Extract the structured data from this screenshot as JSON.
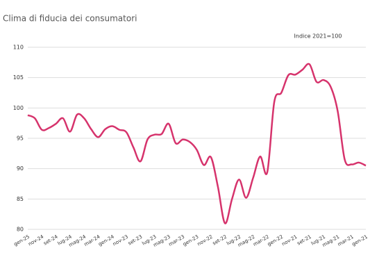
{
  "chart_data": {
    "type": "line",
    "title": "Clima di fiducia dei consumatori",
    "annotation": "Indice 2021=100",
    "categories": [
      "gen-25",
      null,
      "nov-24",
      null,
      "set-24",
      null,
      "lug-24",
      null,
      "mag-24",
      null,
      "mar-24",
      null,
      "gen-24",
      null,
      "nov-23",
      null,
      "set-23",
      null,
      "lug-23",
      null,
      "mag-23",
      null,
      "mar-23",
      null,
      "gen-23",
      null,
      "nov-22",
      null,
      "set-22",
      null,
      "lug-22",
      null,
      "mag-22",
      null,
      "mar-22",
      null,
      "gen-22",
      null,
      "nov-21",
      null,
      "set-21",
      null,
      "lug-21",
      null,
      "mag-21",
      null,
      "mar-21",
      null,
      "gen-21"
    ],
    "series": [
      {
        "color": "#d6336c",
        "values": [
          98.8,
          98.3,
          96.4,
          96.7,
          97.4,
          98.3,
          96.1,
          98.9,
          98.3,
          96.5,
          95.2,
          96.5,
          97.0,
          96.4,
          96.0,
          93.5,
          91.2,
          94.8,
          95.6,
          95.7,
          97.4,
          94.2,
          94.8,
          94.4,
          93.1,
          90.6,
          91.9,
          87.0,
          81.0,
          85.0,
          88.2,
          85.2,
          88.5,
          92.0,
          89.4,
          101.0,
          102.5,
          105.4,
          105.5,
          106.3,
          107.2,
          104.3,
          104.6,
          103.5,
          99.5,
          91.5,
          90.7,
          91.0,
          90.5
        ]
      }
    ],
    "ylim": [
      80,
      110
    ],
    "yticks": [
      80,
      85,
      90,
      95,
      100,
      105,
      110
    ],
    "grid": true
  }
}
